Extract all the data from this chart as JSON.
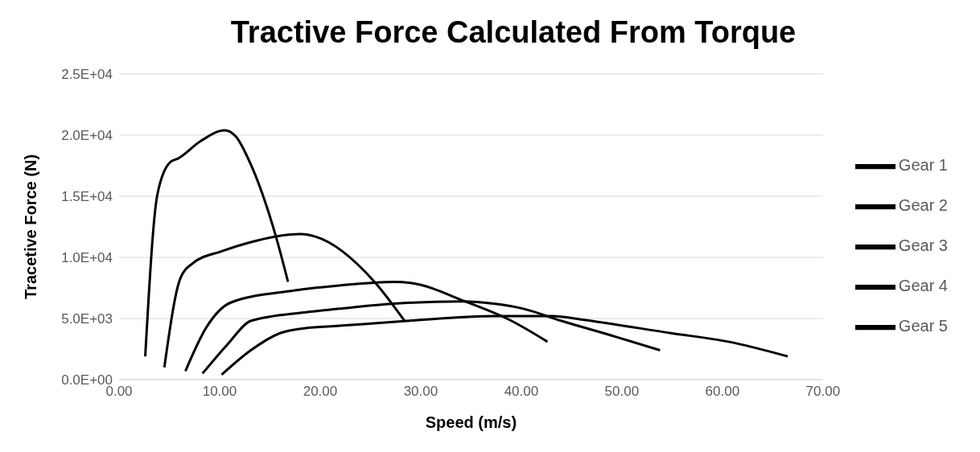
{
  "chart_data": {
    "type": "line",
    "title": "Tractive Force Calculated From Torque",
    "xlabel": "Speed (m/s)",
    "ylabel": "Tracetive Force (N)",
    "xlim": [
      0,
      70
    ],
    "xticks": [
      {
        "value": 0,
        "label": "0.00"
      },
      {
        "value": 10,
        "label": "10.00"
      },
      {
        "value": 20,
        "label": "20.00"
      },
      {
        "value": 30,
        "label": "30.00"
      },
      {
        "value": 40,
        "label": "40.00"
      },
      {
        "value": 50,
        "label": "50.00"
      },
      {
        "value": 60,
        "label": "60.00"
      },
      {
        "value": 70,
        "label": "70.00"
      }
    ],
    "ylim": [
      0,
      25000
    ],
    "yticks": [
      {
        "value": 0,
        "label": "0.0E+00"
      },
      {
        "value": 5000,
        "label": "5.0E+03"
      },
      {
        "value": 10000,
        "label": "1.0E+04"
      },
      {
        "value": 15000,
        "label": "1.5E+04"
      },
      {
        "value": 20000,
        "label": "2.0E+04"
      },
      {
        "value": 25000,
        "label": "2.5E+04"
      }
    ],
    "grid": "y",
    "legend": "right",
    "marker": "none",
    "line_style": "solid",
    "series": [
      {
        "name": "Gear 1",
        "color": "#000000",
        "x": [
          2.6,
          3.8,
          5.1,
          5.9,
          8.1,
          10.5,
          11.6,
          13.1,
          14.9,
          15.6,
          16.8
        ],
        "values": [
          1900,
          15100,
          17800,
          18100,
          19500,
          20400,
          19900,
          17600,
          13600,
          11700,
          8000
        ]
      },
      {
        "name": "Gear 2",
        "color": "#000000",
        "x": [
          4.5,
          6.1,
          7.3,
          10.2,
          12.9,
          15.5,
          18.1,
          19.5,
          25.4,
          28.4
        ],
        "values": [
          1000,
          8300,
          9500,
          10500,
          11200,
          11700,
          11900,
          11700,
          8000,
          4800
        ]
      },
      {
        "name": "Gear 3",
        "color": "#000000",
        "x": [
          6.6,
          8.7,
          11.1,
          16.6,
          21.9,
          27.4,
          29.1,
          34.4,
          38.8,
          42.6
        ],
        "values": [
          700,
          4300,
          6300,
          7200,
          7700,
          8000,
          7900,
          6400,
          4900,
          3100
        ]
      },
      {
        "name": "Gear 4",
        "color": "#000000",
        "x": [
          8.3,
          10.8,
          13.1,
          18.4,
          21.9,
          27.1,
          34.1,
          37.4,
          40.2,
          44.0,
          49.0,
          53.8
        ],
        "values": [
          500,
          2900,
          4800,
          5500,
          5800,
          6200,
          6400,
          6200,
          5800,
          4800,
          3600,
          2400
        ]
      },
      {
        "name": "Gear 5",
        "color": "#000000",
        "x": [
          10.2,
          13.1,
          16.0,
          18.4,
          21.9,
          28.6,
          37.4,
          43.1,
          46.1,
          54.9,
          60.6,
          66.5
        ],
        "values": [
          400,
          2400,
          3800,
          4200,
          4400,
          4800,
          5200,
          5200,
          4900,
          3800,
          3100,
          1900
        ]
      }
    ]
  }
}
